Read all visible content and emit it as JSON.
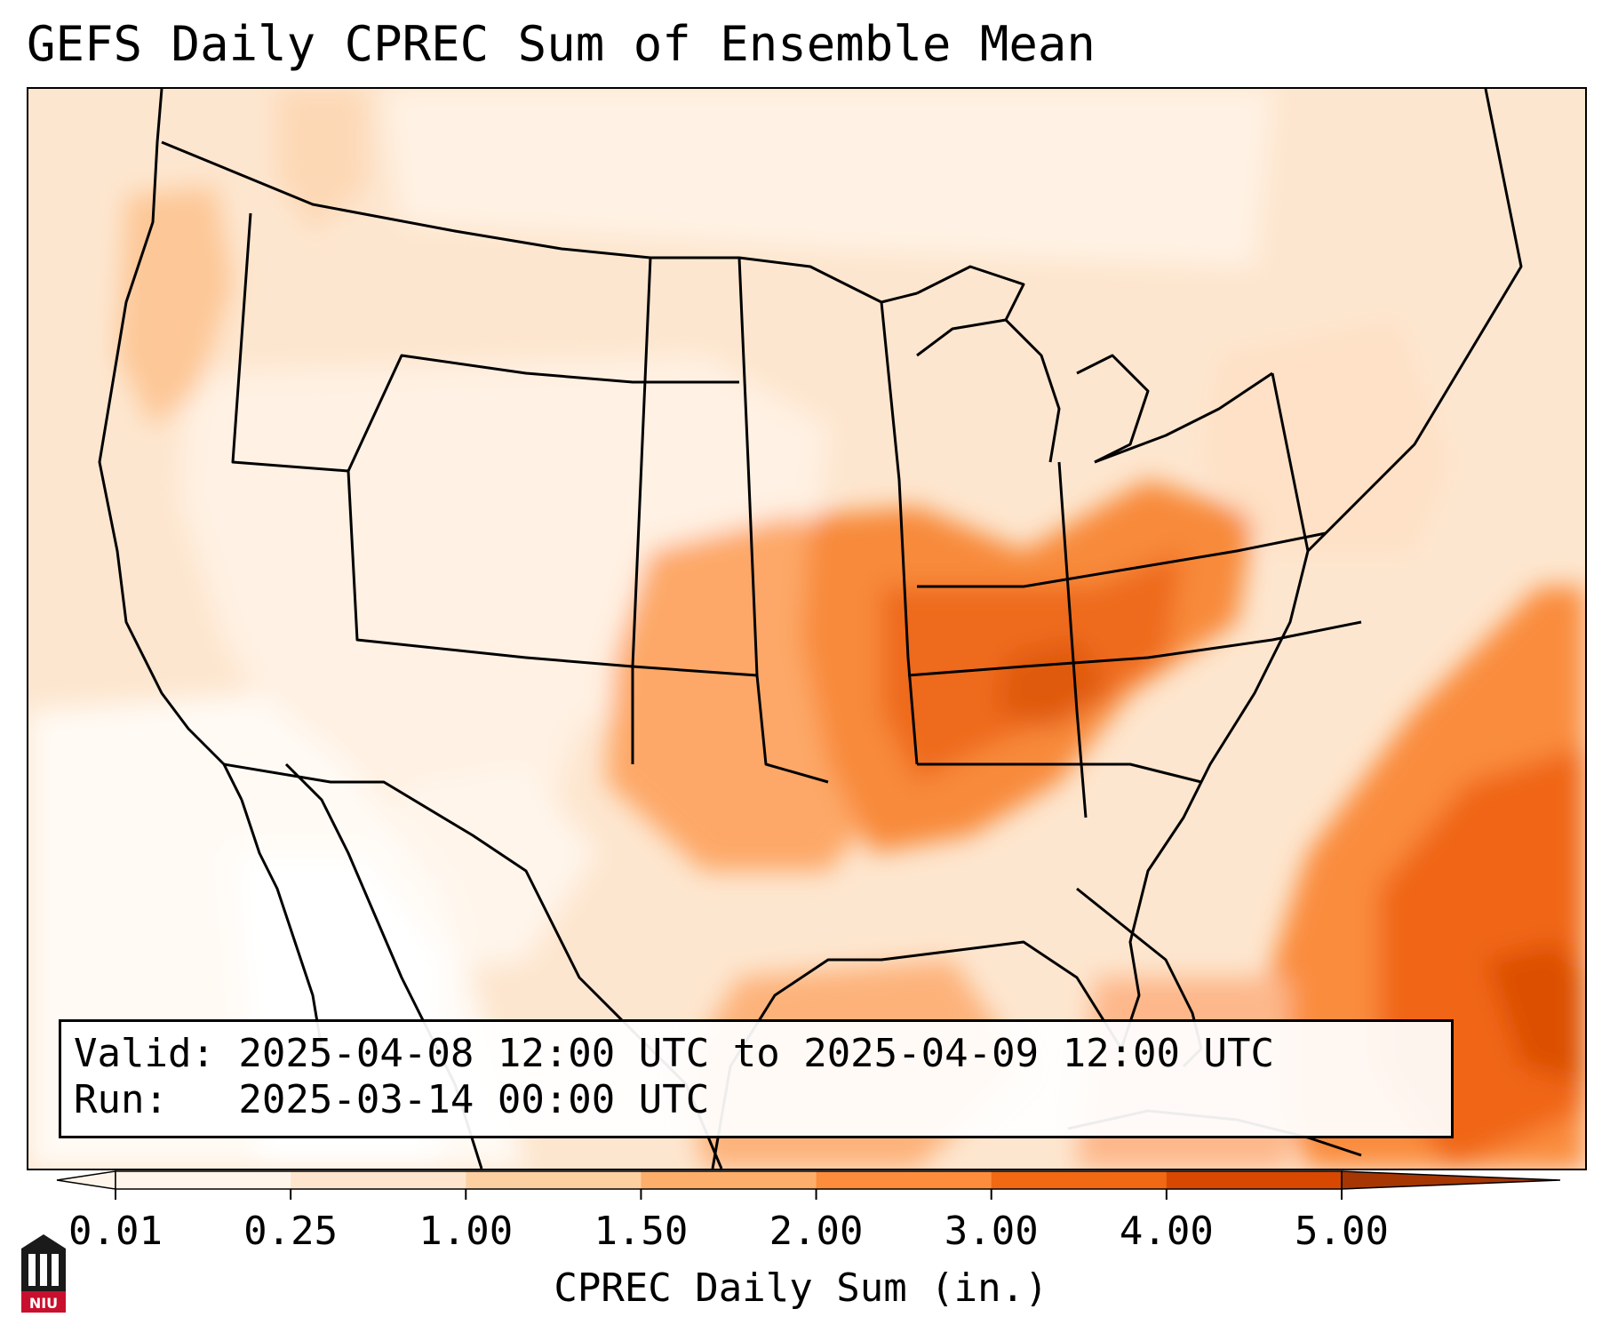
{
  "title": "GEFS Daily CPREC Sum of Ensemble Mean",
  "info": {
    "valid_line": "Valid: 2025-04-08 12:00 UTC to 2025-04-09 12:00 UTC",
    "run_line": "Run:   2025-03-14 00:00 UTC"
  },
  "colorbar": {
    "label": "CPREC Daily Sum (in.)",
    "ticks": [
      "0.01",
      "0.25",
      "1.00",
      "1.50",
      "2.00",
      "3.00",
      "4.00",
      "5.00"
    ],
    "colors": [
      "#fff5eb",
      "#fee6ce",
      "#fdd0a2",
      "#fdae6b",
      "#fd8d3c",
      "#f16913",
      "#d94801",
      "#a63603"
    ],
    "extend": "both"
  },
  "logo": {
    "text": "NIU",
    "colors": {
      "red": "#c8102e",
      "black": "#000000"
    }
  },
  "map": {
    "projection": "Lambert conformal, continental United States",
    "field": "GEFS ensemble mean convective precipitation daily sum",
    "max_region": "Tennessee / Kentucky / Mississippi valley and western Atlantic"
  }
}
